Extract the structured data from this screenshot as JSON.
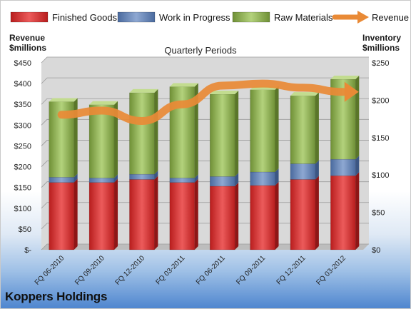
{
  "company": "Koppers Holdings",
  "colors": {
    "finished_goods": "#d42a2a",
    "work_in_progress": "#5d7fb5",
    "raw_materials": "#8db04a",
    "revenue": "#e98a36"
  },
  "chart_data": {
    "type": "bar",
    "stacked": true,
    "title": "Quarterly Periods",
    "left_axis": {
      "title_line1": "Revenue",
      "title_line2": "$millions",
      "ylim": [
        0,
        450
      ],
      "ticks": [
        "$-",
        "$50",
        "$100",
        "$150",
        "$200",
        "$250",
        "$300",
        "$350",
        "$400",
        "$450"
      ]
    },
    "right_axis": {
      "title_line1": "Inventory",
      "title_line2": "$millions",
      "ylim": [
        0,
        250
      ],
      "ticks": [
        "$0",
        "$50",
        "$100",
        "$150",
        "$200",
        "$250"
      ]
    },
    "categories": [
      "FQ 06-2010",
      "FQ 09-2010",
      "FQ 12-2010",
      "FQ 03-2011",
      "FQ 06-2011",
      "FQ 09-2011",
      "FQ 12-2011",
      "FQ 03-2012"
    ],
    "series": [
      {
        "name": "Finished Goods",
        "axis": "right",
        "values": [
          90,
          90,
          94,
          90,
          85,
          86,
          94,
          99
        ]
      },
      {
        "name": "Work in Progress",
        "axis": "right",
        "values": [
          7,
          6,
          7,
          6,
          13,
          18,
          21,
          22
        ]
      },
      {
        "name": "Raw Materials",
        "axis": "right",
        "values": [
          101,
          98,
          109,
          122,
          110,
          110,
          91,
          107
        ]
      },
      {
        "name": "Revenue",
        "axis": "left",
        "type": "line",
        "values": [
          325,
          335,
          310,
          350,
          395,
          400,
          390,
          380
        ]
      }
    ],
    "legend_position": "top",
    "grid": true
  }
}
